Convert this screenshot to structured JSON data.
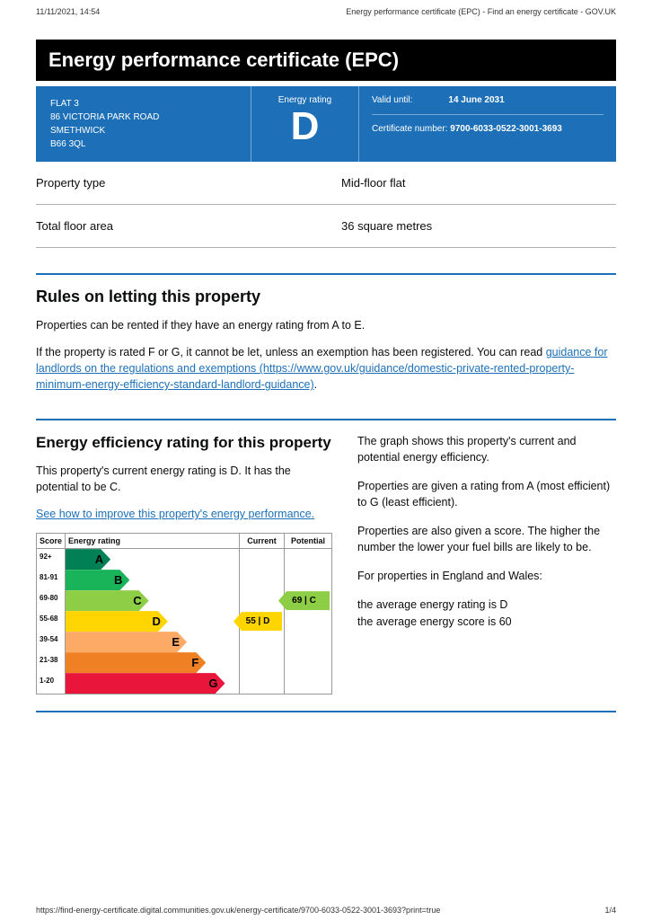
{
  "meta": {
    "timestamp": "11/11/2021, 14:54",
    "page_title_header": "Energy performance certificate (EPC) - Find an energy certificate - GOV.UK",
    "footer_url": "https://find-energy-certificate.digital.communities.gov.uk/energy-certificate/9700-6033-0522-3001-3693?print=true",
    "page_num": "1/4"
  },
  "title": "Energy performance certificate (EPC)",
  "address": {
    "line1": "FLAT 3",
    "line2": "86 VICTORIA PARK ROAD",
    "line3": "SMETHWICK",
    "line4": "B66 3QL"
  },
  "rating": {
    "label": "Energy rating",
    "letter": "D"
  },
  "cert": {
    "valid_label": "Valid until:",
    "valid_value": "14 June 2031",
    "num_label": "Certificate number:",
    "num_value": "9700-6033-0522-3001-3693"
  },
  "summary": {
    "property_type_label": "Property type",
    "property_type_value": "Mid-floor flat",
    "floor_area_label": "Total floor area",
    "floor_area_value": "36 square metres"
  },
  "letting": {
    "heading": "Rules on letting this property",
    "p1": "Properties can be rented if they have an energy rating from A to E.",
    "p2a": "If the property is rated F or G, it cannot be let, unless an exemption has been registered. You can read ",
    "link_text": "guidance for landlords on the regulations and exemptions (https://www.gov.uk/guidance/domestic-private-rented-property-minimum-energy-efficiency-standard-landlord-guidance)",
    "p2b": "."
  },
  "efficiency": {
    "heading": "Energy efficiency rating for this property",
    "p1": "This property's current energy rating is D. It has the potential to be C.",
    "improve_link": "See how to improve this property's energy performance.",
    "right_p1": "The graph shows this property's current and potential energy efficiency.",
    "right_p2": "Properties are given a rating from A (most efficient) to G (least efficient).",
    "right_p3": "Properties are also given a score. The higher the number the lower your fuel bills are likely to be.",
    "right_p4": "For properties in England and Wales:",
    "right_p5a": "the average energy rating is D",
    "right_p5b": "the average energy score is 60"
  },
  "chart": {
    "head_score": "Score",
    "head_band": "Energy rating",
    "head_current": "Current",
    "head_potential": "Potential",
    "bands": [
      {
        "range": "92+",
        "letter": "A",
        "cls": "a"
      },
      {
        "range": "81-91",
        "letter": "B",
        "cls": "b"
      },
      {
        "range": "69-80",
        "letter": "C",
        "cls": "c"
      },
      {
        "range": "55-68",
        "letter": "D",
        "cls": "d"
      },
      {
        "range": "39-54",
        "letter": "E",
        "cls": "e"
      },
      {
        "range": "21-38",
        "letter": "F",
        "cls": "f"
      },
      {
        "range": "1-20",
        "letter": "G",
        "cls": "g"
      }
    ],
    "current": {
      "text": "55 | D",
      "band_index": 3,
      "cls": "d"
    },
    "potential": {
      "text": "69 | C",
      "band_index": 2,
      "cls": "c"
    }
  }
}
